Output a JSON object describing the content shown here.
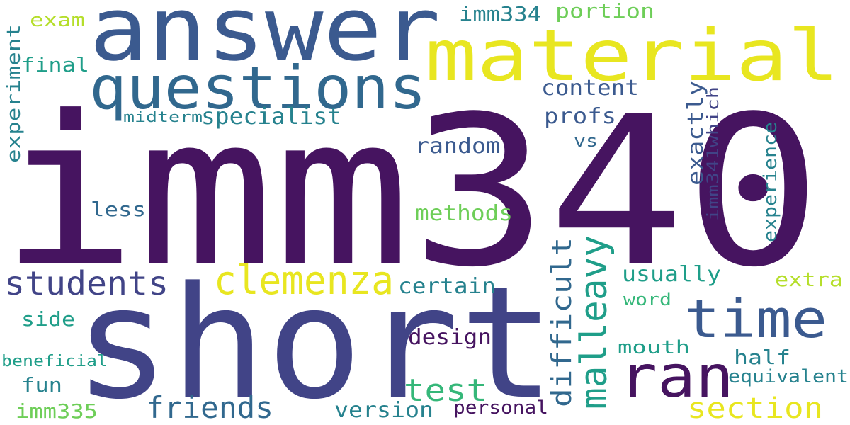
{
  "colors": {
    "background": "#ffffff",
    "dark_purple": "#461460",
    "indigo": "#414487",
    "blue": "#3b5a8f",
    "steel_blue": "#31688e",
    "teal": "#26828e",
    "green_teal": "#1f9e89",
    "green": "#35b779",
    "light_green": "#6ece58",
    "lime": "#b5de2b",
    "yellow": "#e8e620"
  },
  "words": [
    {
      "text": "imm340",
      "color": "dark_purple",
      "orientation": "horizontal"
    },
    {
      "text": "short",
      "color": "indigo",
      "orientation": "horizontal"
    },
    {
      "text": "answer",
      "color": "blue",
      "orientation": "horizontal"
    },
    {
      "text": "material",
      "color": "yellow",
      "orientation": "horizontal"
    },
    {
      "text": "questions",
      "color": "steel_blue",
      "orientation": "horizontal"
    },
    {
      "text": "time",
      "color": "blue",
      "orientation": "horizontal"
    },
    {
      "text": "ran",
      "color": "dark_purple",
      "orientation": "horizontal"
    },
    {
      "text": "clemenza",
      "color": "yellow",
      "orientation": "horizontal"
    },
    {
      "text": "students",
      "color": "indigo",
      "orientation": "horizontal"
    },
    {
      "text": "malleavy",
      "color": "green_teal",
      "orientation": "vertical"
    },
    {
      "text": "difficult",
      "color": "steel_blue",
      "orientation": "vertical"
    },
    {
      "text": "test",
      "color": "green",
      "orientation": "horizontal"
    },
    {
      "text": "friends",
      "color": "steel_blue",
      "orientation": "horizontal"
    },
    {
      "text": "section",
      "color": "yellow",
      "orientation": "horizontal"
    },
    {
      "text": "exactly",
      "color": "blue",
      "orientation": "vertical"
    },
    {
      "text": "specialist",
      "color": "teal",
      "orientation": "horizontal"
    },
    {
      "text": "experiment",
      "color": "teal",
      "orientation": "vertical"
    },
    {
      "text": "imm341which",
      "color": "indigo",
      "orientation": "vertical"
    },
    {
      "text": "experience",
      "color": "teal",
      "orientation": "vertical"
    },
    {
      "text": "content",
      "color": "blue",
      "orientation": "horizontal"
    },
    {
      "text": "profs",
      "color": "blue",
      "orientation": "horizontal"
    },
    {
      "text": "random",
      "color": "blue",
      "orientation": "horizontal"
    },
    {
      "text": "methods",
      "color": "light_green",
      "orientation": "horizontal"
    },
    {
      "text": "certain",
      "color": "teal",
      "orientation": "horizontal"
    },
    {
      "text": "usually",
      "color": "green_teal",
      "orientation": "horizontal"
    },
    {
      "text": "design",
      "color": "dark_purple",
      "orientation": "horizontal"
    },
    {
      "text": "version",
      "color": "teal",
      "orientation": "horizontal"
    },
    {
      "text": "imm334",
      "color": "teal",
      "orientation": "horizontal"
    },
    {
      "text": "portion",
      "color": "light_green",
      "orientation": "horizontal"
    },
    {
      "text": "final",
      "color": "green_teal",
      "orientation": "horizontal"
    },
    {
      "text": "less",
      "color": "steel_blue",
      "orientation": "horizontal"
    },
    {
      "text": "extra",
      "color": "lime",
      "orientation": "horizontal"
    },
    {
      "text": "half",
      "color": "teal",
      "orientation": "horizontal"
    },
    {
      "text": "mouth",
      "color": "green_teal",
      "orientation": "horizontal"
    },
    {
      "text": "equivalent",
      "color": "teal",
      "orientation": "horizontal"
    },
    {
      "text": "personal",
      "color": "dark_purple",
      "orientation": "horizontal"
    },
    {
      "text": "exam",
      "color": "lime",
      "orientation": "horizontal"
    },
    {
      "text": "side",
      "color": "green_teal",
      "orientation": "horizontal"
    },
    {
      "text": "fun",
      "color": "teal",
      "orientation": "horizontal"
    },
    {
      "text": "imm335",
      "color": "light_green",
      "orientation": "horizontal"
    },
    {
      "text": "beneficial",
      "color": "green_teal",
      "orientation": "horizontal"
    },
    {
      "text": "midterm",
      "color": "teal",
      "orientation": "horizontal"
    },
    {
      "text": "word",
      "color": "green",
      "orientation": "horizontal"
    },
    {
      "text": "vs",
      "color": "steel_blue",
      "orientation": "horizontal"
    }
  ]
}
